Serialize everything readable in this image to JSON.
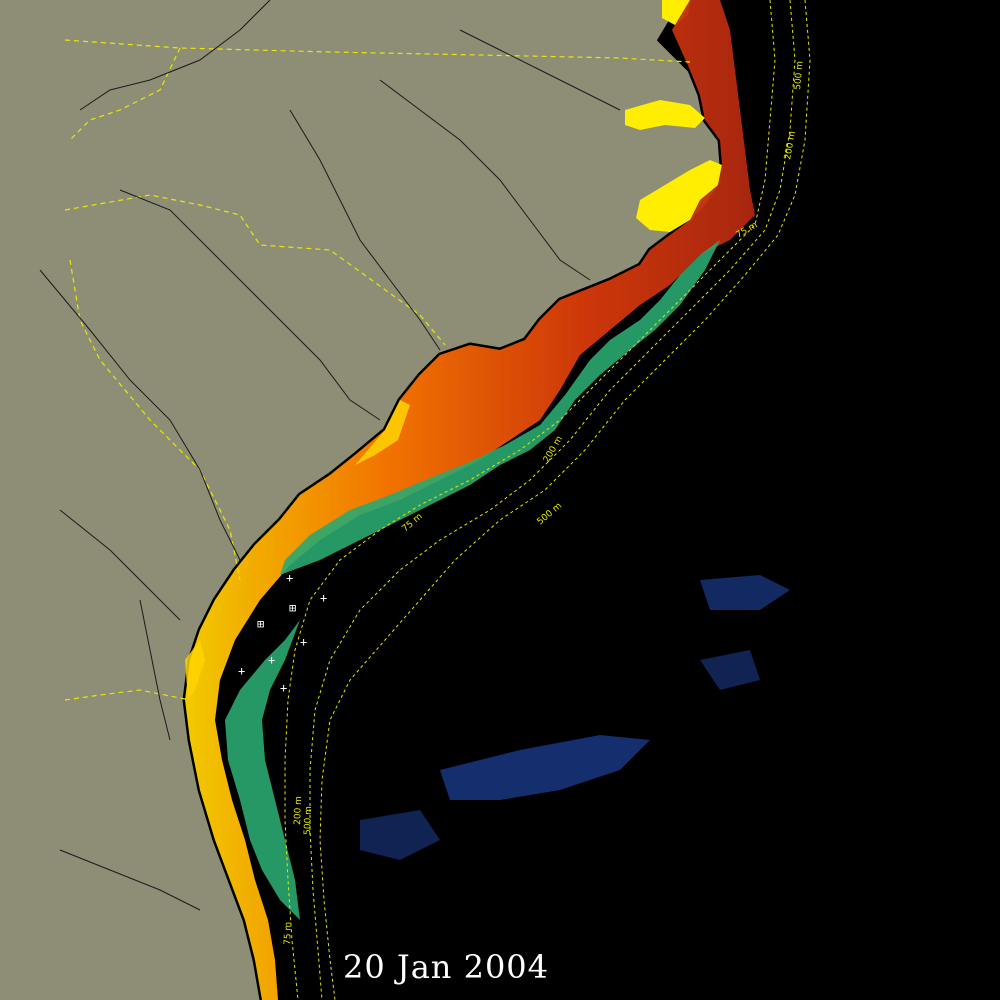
{
  "map": {
    "date": "20 Jan 2004",
    "colors": {
      "land": "#8e8e77",
      "ocean": "#000000",
      "coastline": "#000000",
      "rivers": "#1a1a1a",
      "state_borders": "#e8e800",
      "isobaths": "#e8e800",
      "high_concentration": "#ffff00",
      "medium_high": "#ff7a00",
      "medium": "#d83a0a",
      "low": "#2aa870",
      "very_low": "#1a3a8a",
      "markers": "#ffffff"
    },
    "isobaths": {
      "labels": [
        "75 m",
        "200 m",
        "500 m",
        "75 m",
        "200 m",
        "500 m",
        "75 m",
        "200 m",
        "500 m"
      ]
    },
    "markers": {
      "cross_symbol": "+",
      "boxed_symbol": "⊞"
    }
  }
}
